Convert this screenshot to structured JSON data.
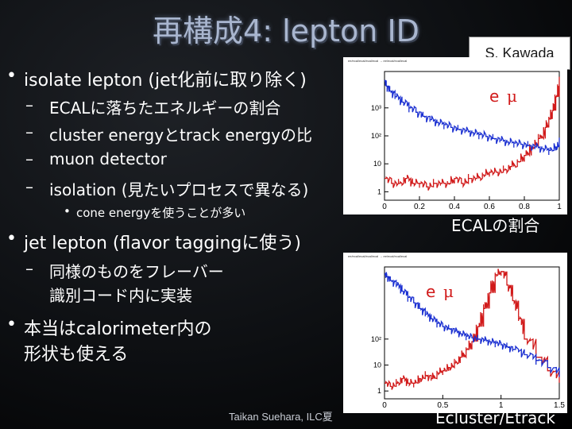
{
  "slide": {
    "title": "再構成4: lepton ID",
    "author": "S. Kawada",
    "footer": "Taikan Suehara, ILC夏",
    "bullets": [
      {
        "text": "isolate lepton (jet化前に取り除く)"
      },
      {
        "text": "ECALに落ちたエネルギーの割合"
      },
      {
        "text": "cluster energyとtrack energyの比"
      },
      {
        "text": "muon detector"
      },
      {
        "text": "isolation (見たいプロセスで異なる)"
      },
      {
        "text": "cone energyを使うことが多い"
      },
      {
        "text": "jet lepton (flavor taggingに使う)"
      },
      {
        "text": "同様のものをフレーバー"
      },
      {
        "text": "識別コード内に実装"
      },
      {
        "text": "本当はcalorimeter内の"
      },
      {
        "text": "形状も使える"
      }
    ]
  },
  "plots": {
    "top": {
      "legend_e": "e",
      "legend_mu": "μ",
      "caption": "ECALの割合",
      "header": "ee/ecal/ecal/ecal/ecal → ee/ecal/ecal/ecal"
    },
    "bottom": {
      "legend_e": "e",
      "legend_mu": "μ",
      "caption": "Ecluster/Etrack",
      "header": "ee/ecal/ecal/ecal/ecal → ee/ecal/ecal/ecal"
    }
  },
  "chart_data": [
    {
      "type": "line",
      "title": "",
      "caption": "ECALの割合",
      "xlim": [
        0,
        1
      ],
      "xticks": [
        "0",
        "0.2",
        "0.4",
        "0.6",
        "0.8",
        "1"
      ],
      "yscale": "log",
      "yticks": [
        "1",
        "10",
        "10²",
        "10³"
      ],
      "series": [
        {
          "name": "e",
          "color": "#d11a1a",
          "x": [
            0.0,
            0.04,
            0.08,
            0.12,
            0.16,
            0.2,
            0.24,
            0.28,
            0.32,
            0.36,
            0.4,
            0.44,
            0.48,
            0.52,
            0.56,
            0.6,
            0.64,
            0.68,
            0.72,
            0.76,
            0.8,
            0.84,
            0.88,
            0.92,
            0.94,
            0.96,
            0.98,
            1.0
          ],
          "y": [
            3,
            2,
            2,
            3,
            2,
            2,
            1.5,
            2,
            2,
            2,
            3,
            2,
            3,
            3,
            4,
            5,
            5,
            6,
            8,
            12,
            20,
            40,
            80,
            200,
            400,
            800,
            2500,
            9000
          ]
        },
        {
          "name": "μ",
          "color": "#1a2fd1",
          "x": [
            0.0,
            0.01,
            0.03,
            0.06,
            0.1,
            0.14,
            0.18,
            0.22,
            0.26,
            0.3,
            0.34,
            0.38,
            0.42,
            0.46,
            0.5,
            0.54,
            0.58,
            0.62,
            0.66,
            0.7,
            0.74,
            0.78,
            0.82,
            0.86,
            0.9,
            0.94,
            0.98,
            1.0
          ],
          "y": [
            9000,
            6000,
            4000,
            2500,
            1600,
            1000,
            700,
            500,
            380,
            300,
            250,
            200,
            170,
            150,
            130,
            110,
            95,
            80,
            70,
            60,
            55,
            50,
            45,
            40,
            35,
            30,
            40,
            60
          ]
        }
      ]
    },
    {
      "type": "line",
      "title": "",
      "caption": "Ecluster/Etrack",
      "xlim": [
        0,
        1.5
      ],
      "xticks": [
        "0",
        "0.5",
        "1",
        "1.5"
      ],
      "yscale": "log",
      "yticks": [
        "1",
        "10",
        "10²"
      ],
      "series": [
        {
          "name": "e",
          "color": "#d11a1a",
          "x": [
            0.0,
            0.05,
            0.1,
            0.15,
            0.2,
            0.25,
            0.3,
            0.35,
            0.4,
            0.45,
            0.5,
            0.55,
            0.6,
            0.65,
            0.7,
            0.75,
            0.8,
            0.85,
            0.9,
            0.95,
            1.0,
            1.05,
            1.1,
            1.15,
            1.2,
            1.3,
            1.4,
            1.5
          ],
          "y": [
            2,
            1.5,
            2,
            3,
            2,
            2,
            3,
            4,
            3,
            5,
            6,
            8,
            12,
            20,
            40,
            80,
            300,
            1500,
            6000,
            30000,
            40000,
            12000,
            3000,
            600,
            100,
            20,
            6,
            3
          ]
        },
        {
          "name": "μ",
          "color": "#1a2fd1",
          "x": [
            0.0,
            0.02,
            0.05,
            0.1,
            0.15,
            0.2,
            0.25,
            0.3,
            0.35,
            0.4,
            0.45,
            0.5,
            0.55,
            0.6,
            0.65,
            0.7,
            0.75,
            0.8,
            0.85,
            0.9,
            0.95,
            1.0,
            1.05,
            1.1,
            1.2,
            1.3,
            1.4,
            1.5
          ],
          "y": [
            30000,
            25000,
            18000,
            12000,
            7000,
            4000,
            2500,
            1500,
            900,
            600,
            400,
            300,
            250,
            200,
            160,
            130,
            110,
            100,
            90,
            80,
            70,
            60,
            50,
            40,
            25,
            15,
            8,
            5
          ]
        }
      ]
    }
  ]
}
